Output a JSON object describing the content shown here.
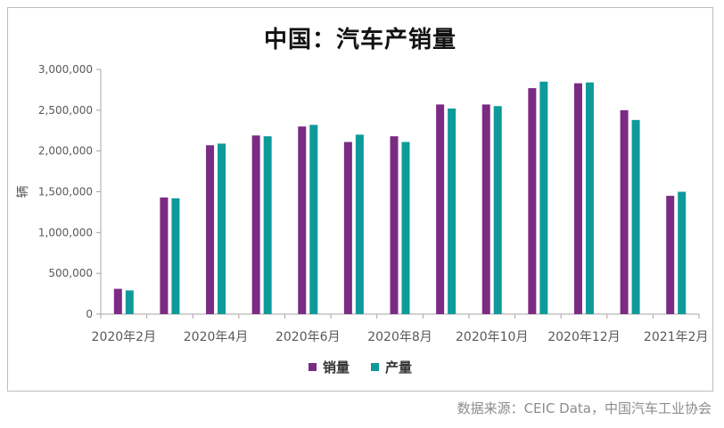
{
  "title": "中国：汽车产销量",
  "source": "数据来源：CEIC Data，中国汽车工业协会",
  "colors": {
    "sales": "#7b2b84",
    "production": "#0f9a9a"
  },
  "chart_data": {
    "type": "bar",
    "title": "中国：汽车产销量",
    "ylabel": "辆",
    "xlabel": "",
    "ylim": [
      0,
      3000000
    ],
    "yticks": [
      "0",
      "500,000",
      "1,000,000",
      "1,500,000",
      "2,000,000",
      "2,500,000",
      "3,000,000"
    ],
    "ytick_values": [
      0,
      500000,
      1000000,
      1500000,
      2000000,
      2500000,
      3000000
    ],
    "categories": [
      "2020-02",
      "2020-03",
      "2020-04",
      "2020-05",
      "2020-06",
      "2020-07",
      "2020-08",
      "2020-09",
      "2020-10",
      "2020-11",
      "2020-12",
      "2021-01",
      "2021-02"
    ],
    "xtick_labels": [
      "2020年2月",
      "2020年4月",
      "2020年6月",
      "2020年8月",
      "2020年10月",
      "2020年12月",
      "2021年2月"
    ],
    "grid": false,
    "legend_position": "bottom-center",
    "series": [
      {
        "name": "销量",
        "color": "#7b2b84",
        "values": [
          310000,
          1430000,
          2070000,
          2190000,
          2300000,
          2110000,
          2180000,
          2570000,
          2570000,
          2770000,
          2830000,
          2500000,
          1450000
        ]
      },
      {
        "name": "产量",
        "color": "#0f9a9a",
        "values": [
          290000,
          1420000,
          2090000,
          2180000,
          2320000,
          2200000,
          2110000,
          2520000,
          2550000,
          2850000,
          2840000,
          2380000,
          1500000
        ]
      }
    ]
  }
}
